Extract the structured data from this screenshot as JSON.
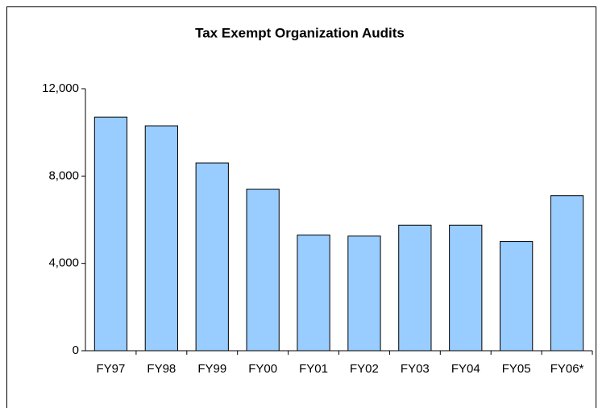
{
  "chart_data": {
    "type": "bar",
    "title": "Tax Exempt Organization Audits",
    "categories": [
      "FY97",
      "FY98",
      "FY99",
      "FY00",
      "FY01",
      "FY02",
      "FY03",
      "FY04",
      "FY05",
      "FY06*"
    ],
    "values": [
      10700,
      10300,
      8600,
      7400,
      5300,
      5250,
      5750,
      5750,
      5000,
      7100
    ],
    "color": "#99ccff",
    "ylim": [
      0,
      12000
    ],
    "yticks": [
      0,
      {
        "value": 4000,
        "label": "4,000"
      },
      {
        "value": 8000,
        "label": "8,000"
      },
      {
        "value": 12000,
        "label": "12,000"
      }
    ],
    "grid": false
  }
}
